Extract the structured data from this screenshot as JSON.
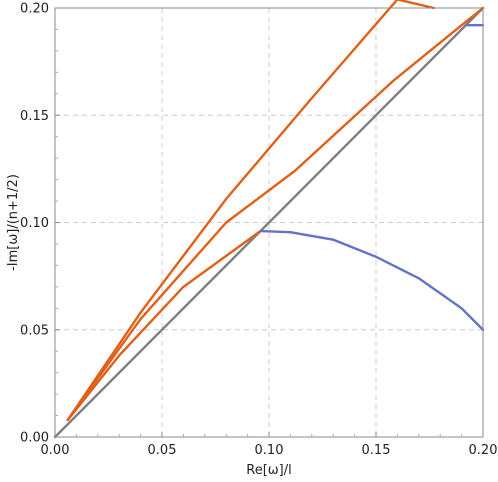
{
  "chart_data": {
    "type": "line",
    "title": "",
    "xlabel": "Re[ω]/l",
    "ylabel": "-Im[ω]/(n+1/2)",
    "xlim": [
      0,
      0.2
    ],
    "ylim": [
      0,
      0.2
    ],
    "x_ticks": [
      "0.00",
      "0.05",
      "0.10",
      "0.15",
      "0.20"
    ],
    "y_ticks": [
      "0.00",
      "0.05",
      "0.10",
      "0.15",
      "0.20"
    ],
    "x_tick_values": [
      0,
      0.05,
      0.1,
      0.15,
      0.2
    ],
    "y_tick_values": [
      0,
      0.05,
      0.1,
      0.15,
      0.2
    ],
    "grid": true,
    "legend": "none",
    "series": [
      {
        "color": "#7f7f7f",
        "points": [
          [
            0,
            0
          ],
          [
            0.2,
            0.2
          ]
        ]
      },
      {
        "color": "#e0601a",
        "points": [
          [
            0.006,
            0.008
          ],
          [
            0.04,
            0.058
          ],
          [
            0.08,
            0.111
          ],
          [
            0.12,
            0.158
          ],
          [
            0.16,
            0.204
          ],
          [
            0.177,
            0.2
          ]
        ]
      },
      {
        "color": "#e0601a",
        "points": [
          [
            0.006,
            0.008
          ],
          [
            0.04,
            0.055
          ],
          [
            0.08,
            0.1
          ],
          [
            0.112,
            0.124
          ],
          [
            0.158,
            0.166
          ],
          [
            0.19,
            0.192
          ],
          [
            0.2,
            0.2
          ]
        ]
      },
      {
        "color": "#e0601a",
        "points": [
          [
            0.006,
            0.008
          ],
          [
            0.03,
            0.038
          ],
          [
            0.06,
            0.07
          ],
          [
            0.096,
            0.096
          ]
        ]
      },
      {
        "color": "#6272c8",
        "points": [
          [
            0.096,
            0.096
          ],
          [
            0.11,
            0.0955
          ],
          [
            0.13,
            0.092
          ],
          [
            0.15,
            0.084
          ],
          [
            0.17,
            0.074
          ],
          [
            0.19,
            0.06
          ],
          [
            0.2,
            0.05
          ]
        ]
      },
      {
        "color": "#6272c8",
        "points": [
          [
            0.192,
            0.192
          ],
          [
            0.2,
            0.192
          ]
        ]
      }
    ]
  }
}
